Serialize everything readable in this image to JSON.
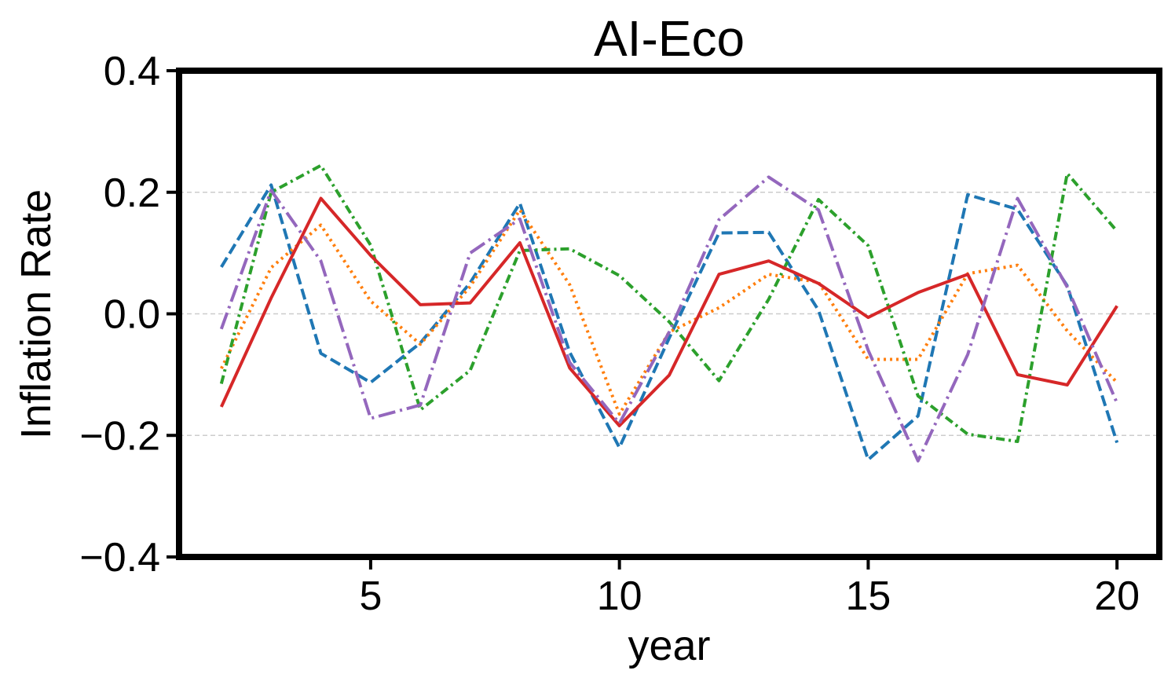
{
  "chart_data": {
    "type": "line",
    "title": "AI-Eco",
    "xlabel": "year",
    "ylabel": "Inflation Rate",
    "xlim": [
      1.15,
      20.85
    ],
    "ylim": [
      -0.4,
      0.4
    ],
    "x_ticks": [
      5,
      10,
      15,
      20
    ],
    "x_tick_labels": [
      "5",
      "10",
      "15",
      "20"
    ],
    "y_ticks": [
      -0.4,
      -0.2,
      0.0,
      0.2,
      0.4
    ],
    "y_tick_labels": [
      "−0.4",
      "−0.2",
      "0.0",
      "0.2",
      "0.4"
    ],
    "grid": {
      "axis": "y",
      "style": "dashed",
      "color": "#cccccc"
    },
    "x": [
      2,
      3,
      4,
      5,
      6,
      7,
      8,
      9,
      10,
      11,
      12,
      13,
      14,
      15,
      16,
      17,
      18,
      19,
      20
    ],
    "series": [
      {
        "name": "series-blue",
        "color": "#1f77b4",
        "dash": "dashed",
        "values": [
          0.077,
          0.212,
          -0.065,
          -0.113,
          -0.048,
          0.051,
          0.182,
          -0.063,
          -0.22,
          -0.04,
          0.133,
          0.134,
          0.006,
          -0.24,
          -0.168,
          0.196,
          0.172,
          0.046,
          -0.212
        ]
      },
      {
        "name": "series-orange",
        "color": "#ff7f0e",
        "dash": "dotted",
        "values": [
          -0.09,
          0.076,
          0.146,
          0.021,
          -0.05,
          0.045,
          0.171,
          0.048,
          -0.165,
          -0.03,
          0.01,
          0.065,
          0.052,
          -0.075,
          -0.075,
          0.066,
          0.08,
          -0.028,
          -0.113
        ]
      },
      {
        "name": "series-green",
        "color": "#2ca02c",
        "dash": "dashdot",
        "values": [
          -0.115,
          0.2,
          0.244,
          0.113,
          -0.158,
          -0.093,
          0.104,
          0.107,
          0.063,
          -0.013,
          -0.11,
          0.024,
          0.188,
          0.112,
          -0.135,
          -0.198,
          -0.21,
          0.231,
          0.136
        ]
      },
      {
        "name": "series-red",
        "color": "#d62728",
        "dash": "solid",
        "values": [
          -0.153,
          0.026,
          0.19,
          0.096,
          0.015,
          0.018,
          0.117,
          -0.089,
          -0.184,
          -0.101,
          0.065,
          0.087,
          0.05,
          -0.006,
          0.035,
          0.065,
          -0.1,
          -0.117,
          0.013
        ]
      },
      {
        "name": "series-purple",
        "color": "#9467bd",
        "dash": "longdashdot",
        "values": [
          -0.025,
          0.203,
          0.087,
          -0.172,
          -0.15,
          0.1,
          0.156,
          -0.08,
          -0.18,
          -0.03,
          0.155,
          0.225,
          0.171,
          -0.06,
          -0.242,
          -0.067,
          0.19,
          0.044,
          -0.147
        ]
      }
    ]
  }
}
